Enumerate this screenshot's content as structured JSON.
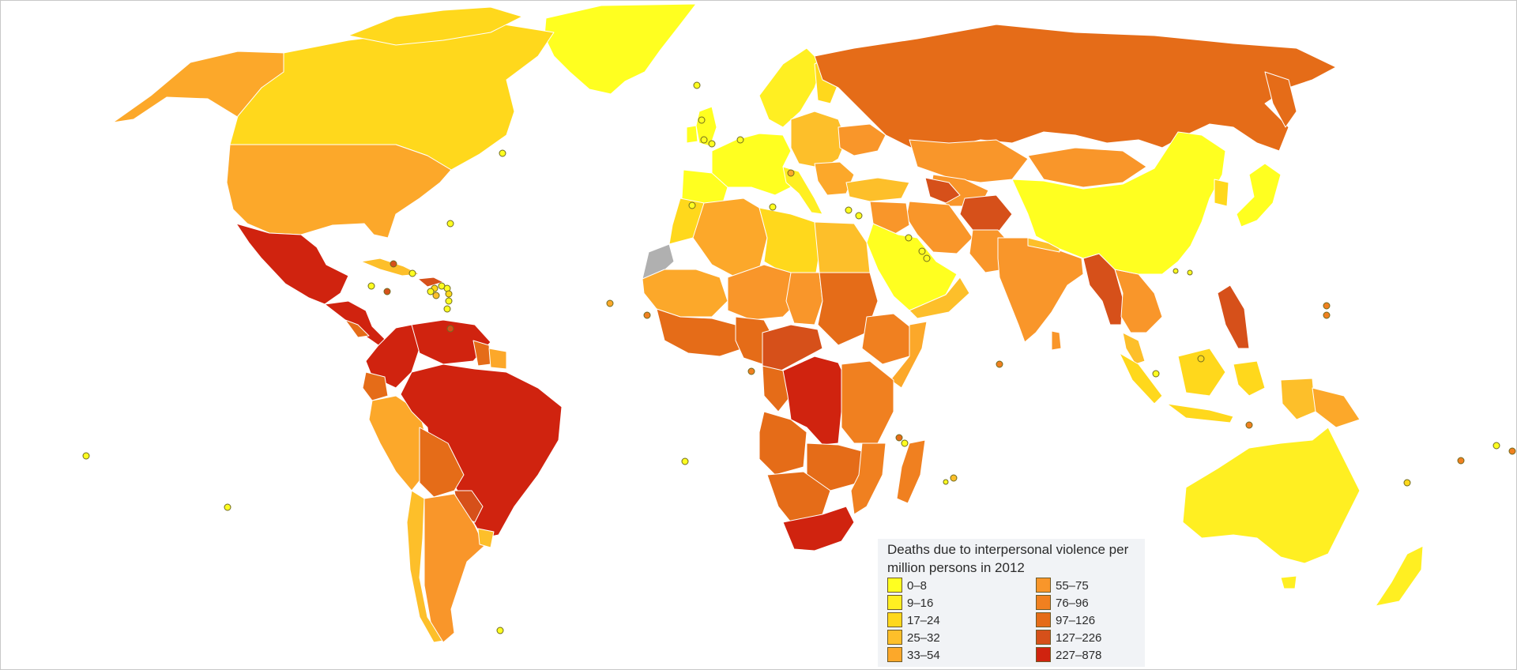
{
  "legend": {
    "title": "Deaths due to interpersonal violence per million persons in 2012",
    "columns": [
      [
        {
          "label": "0–8",
          "color": "#ffff20"
        },
        {
          "label": "9–16",
          "color": "#ffef22"
        },
        {
          "label": "17–24",
          "color": "#ffd81c"
        },
        {
          "label": "25–32",
          "color": "#fdbf2a"
        },
        {
          "label": "33–54",
          "color": "#fca82a"
        }
      ],
      [
        {
          "label": "55–75",
          "color": "#f9962a"
        },
        {
          "label": "76–96",
          "color": "#f08020"
        },
        {
          "label": "97–126",
          "color": "#e56c18"
        },
        {
          "label": "127–226",
          "color": "#d6501a"
        },
        {
          "label": "227–878",
          "color": "#d0230f"
        }
      ]
    ]
  },
  "no_data_color": "#b0b0b0"
}
